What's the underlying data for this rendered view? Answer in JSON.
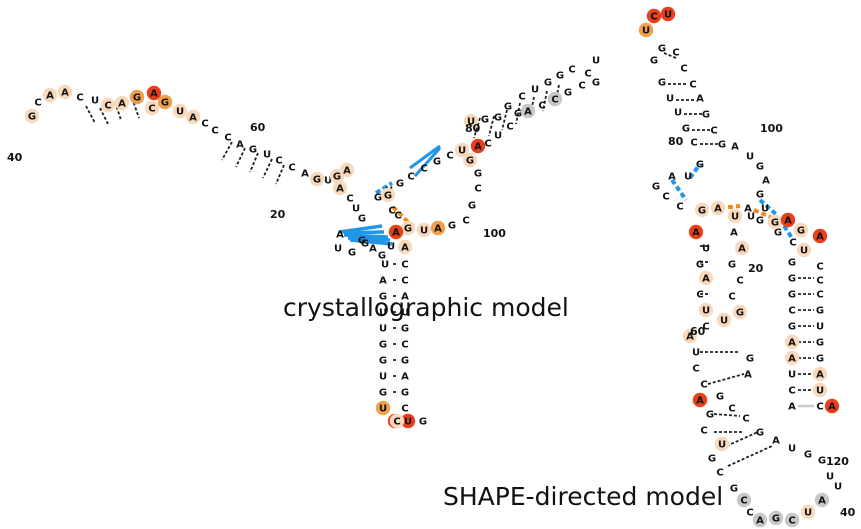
{
  "captions": {
    "left": "crystallographic model",
    "right": "SHAPE-directed model"
  },
  "colors": {
    "high_reactivity": "#e8401c",
    "medium_reactivity": "#f0a04a",
    "low_reactivity": "#f8d9bc",
    "no_data": "#c8c8c8",
    "tertiary_blue": "#2196e8",
    "tertiary_orange": "#f08c1a",
    "pair_line": "#222222"
  },
  "left_model": {
    "numbers": [
      "20",
      "40",
      "60",
      "80",
      "100"
    ],
    "bases": [
      {
        "t": "C",
        "c": "none"
      },
      {
        "t": "G",
        "c": "low"
      },
      {
        "t": "A",
        "c": "low"
      },
      {
        "t": "A",
        "c": "low"
      },
      {
        "t": "C",
        "c": "none"
      },
      {
        "t": "U",
        "c": "none"
      },
      {
        "t": "C",
        "c": "low"
      },
      {
        "t": "A",
        "c": "low"
      },
      {
        "t": "G",
        "c": "med"
      },
      {
        "t": "A",
        "c": "high"
      },
      {
        "t": "C",
        "c": "low"
      },
      {
        "t": "G",
        "c": "med"
      },
      {
        "t": "U",
        "c": "low"
      },
      {
        "t": "A",
        "c": "low"
      },
      {
        "t": "C",
        "c": "none"
      },
      {
        "t": "C",
        "c": "none"
      },
      {
        "t": "C",
        "c": "none"
      },
      {
        "t": "A",
        "c": "none"
      },
      {
        "t": "G",
        "c": "none"
      },
      {
        "t": "U",
        "c": "none"
      },
      {
        "t": "C",
        "c": "none"
      },
      {
        "t": "C",
        "c": "none"
      },
      {
        "t": "A",
        "c": "none"
      },
      {
        "t": "G",
        "c": "low"
      },
      {
        "t": "U",
        "c": "none"
      },
      {
        "t": "G",
        "c": "low"
      },
      {
        "t": "A",
        "c": "low"
      },
      {
        "t": "A",
        "c": "low"
      },
      {
        "t": "C",
        "c": "none"
      },
      {
        "t": "U",
        "c": "none"
      },
      {
        "t": "G",
        "c": "none"
      },
      {
        "t": "G",
        "c": "none"
      },
      {
        "t": "U",
        "c": "none"
      },
      {
        "t": "G",
        "c": "none"
      },
      {
        "t": "C",
        "c": "none"
      },
      {
        "t": "C",
        "c": "none"
      },
      {
        "t": "G",
        "c": "none"
      },
      {
        "t": "C",
        "c": "none"
      },
      {
        "t": "U",
        "c": "low"
      },
      {
        "t": "A",
        "c": "high"
      },
      {
        "t": "G",
        "c": "low"
      },
      {
        "t": "G",
        "c": "none"
      },
      {
        "t": "C",
        "c": "none"
      },
      {
        "t": "G",
        "c": "none"
      },
      {
        "t": "C",
        "c": "none"
      },
      {
        "t": "G",
        "c": "none"
      },
      {
        "t": "A",
        "c": "med"
      },
      {
        "t": "U",
        "c": "low"
      },
      {
        "t": "G",
        "c": "low"
      },
      {
        "t": "C",
        "c": "none"
      },
      {
        "t": "C",
        "c": "none"
      },
      {
        "t": "G",
        "c": "low"
      },
      {
        "t": "A",
        "c": "high"
      },
      {
        "t": "A",
        "c": "low"
      },
      {
        "t": "U",
        "c": "none"
      },
      {
        "t": "G",
        "c": "none"
      },
      {
        "t": "A",
        "c": "none"
      },
      {
        "t": "G",
        "c": "none"
      },
      {
        "t": "A",
        "c": "none"
      },
      {
        "t": "U",
        "c": "none"
      },
      {
        "t": "G",
        "c": "none"
      },
      {
        "t": "G",
        "c": "none"
      },
      {
        "t": "U",
        "c": "none"
      },
      {
        "t": "A",
        "c": "none"
      },
      {
        "t": "G",
        "c": "none"
      },
      {
        "t": "U",
        "c": "none"
      },
      {
        "t": "U",
        "c": "none"
      },
      {
        "t": "G",
        "c": "none"
      },
      {
        "t": "G",
        "c": "none"
      },
      {
        "t": "U",
        "c": "none"
      },
      {
        "t": "G",
        "c": "none"
      },
      {
        "t": "U",
        "c": "med"
      },
      {
        "t": "C",
        "c": "high"
      },
      {
        "t": "U",
        "c": "high"
      },
      {
        "t": "C",
        "c": "low"
      },
      {
        "t": "C",
        "c": "none"
      },
      {
        "t": "C",
        "c": "none"
      },
      {
        "t": "A",
        "c": "none"
      },
      {
        "t": "U",
        "c": "none"
      },
      {
        "t": "G",
        "c": "none"
      },
      {
        "t": "C",
        "c": "none"
      },
      {
        "t": "G",
        "c": "none"
      },
      {
        "t": "A",
        "c": "none"
      },
      {
        "t": "G",
        "c": "none"
      },
      {
        "t": "C",
        "c": "none"
      },
      {
        "t": "G",
        "c": "none"
      },
      {
        "t": "G",
        "c": "none"
      },
      {
        "t": "C",
        "c": "none"
      },
      {
        "t": "U",
        "c": "none"
      },
      {
        "t": "C",
        "c": "none"
      },
      {
        "t": "G",
        "c": "none"
      },
      {
        "t": "G",
        "c": "none"
      },
      {
        "t": "U",
        "c": "low"
      },
      {
        "t": "G",
        "c": "none"
      },
      {
        "t": "C",
        "c": "none"
      },
      {
        "t": "U",
        "c": "none"
      },
      {
        "t": "G",
        "c": "none"
      },
      {
        "t": "G",
        "c": "none"
      },
      {
        "t": "C",
        "c": "none"
      },
      {
        "t": "C",
        "c": "none"
      },
      {
        "t": "U",
        "c": "none"
      },
      {
        "t": "G",
        "c": "none"
      },
      {
        "t": "C",
        "c": "none"
      },
      {
        "t": "G",
        "c": "none"
      },
      {
        "t": "C",
        "c": "gray"
      },
      {
        "t": "C",
        "c": "none"
      },
      {
        "t": "A",
        "c": "gray"
      },
      {
        "t": "G",
        "c": "gray"
      },
      {
        "t": "C",
        "c": "gray"
      },
      {
        "t": "U",
        "c": "low"
      },
      {
        "t": "A",
        "c": "gray"
      },
      {
        "t": "U",
        "c": "none"
      }
    ]
  },
  "right_model": {
    "numbers": [
      "20",
      "40",
      "60",
      "80",
      "100",
      "120"
    ],
    "bases": [
      {
        "t": "C",
        "c": "high"
      },
      {
        "t": "U",
        "c": "high"
      },
      {
        "t": "U",
        "c": "med"
      },
      {
        "t": "G",
        "c": "none"
      },
      {
        "t": "C",
        "c": "none"
      },
      {
        "t": "G",
        "c": "none"
      },
      {
        "t": "C",
        "c": "none"
      },
      {
        "t": "G",
        "c": "none"
      },
      {
        "t": "C",
        "c": "none"
      },
      {
        "t": "U",
        "c": "none"
      },
      {
        "t": "A",
        "c": "none"
      },
      {
        "t": "U",
        "c": "none"
      },
      {
        "t": "G",
        "c": "none"
      },
      {
        "t": "G",
        "c": "none"
      },
      {
        "t": "C",
        "c": "none"
      },
      {
        "t": "C",
        "c": "none"
      },
      {
        "t": "G",
        "c": "none"
      },
      {
        "t": "A",
        "c": "none"
      },
      {
        "t": "U",
        "c": "none"
      },
      {
        "t": "G",
        "c": "none"
      },
      {
        "t": "A",
        "c": "none"
      },
      {
        "t": "G",
        "c": "none"
      },
      {
        "t": "U",
        "c": "none"
      },
      {
        "t": "U",
        "c": "none"
      },
      {
        "t": "G",
        "c": "none"
      },
      {
        "t": "G",
        "c": "none"
      },
      {
        "t": "U",
        "c": "none"
      },
      {
        "t": "A",
        "c": "none"
      },
      {
        "t": "G",
        "c": "none"
      },
      {
        "t": "C",
        "c": "none"
      },
      {
        "t": "C",
        "c": "none"
      },
      {
        "t": "G",
        "c": "low"
      },
      {
        "t": "A",
        "c": "low"
      },
      {
        "t": "U",
        "c": "low"
      },
      {
        "t": "A",
        "c": "none"
      },
      {
        "t": "G",
        "c": "none"
      },
      {
        "t": "G",
        "c": "low"
      },
      {
        "t": "A",
        "c": "high"
      },
      {
        "t": "G",
        "c": "low"
      },
      {
        "t": "C",
        "c": "none"
      },
      {
        "t": "A",
        "c": "high"
      },
      {
        "t": "U",
        "c": "low"
      },
      {
        "t": "G",
        "c": "none"
      },
      {
        "t": "C",
        "c": "none"
      },
      {
        "t": "G",
        "c": "none"
      },
      {
        "t": "C",
        "c": "none"
      },
      {
        "t": "G",
        "c": "none"
      },
      {
        "t": "C",
        "c": "none"
      },
      {
        "t": "C",
        "c": "none"
      },
      {
        "t": "G",
        "c": "none"
      },
      {
        "t": "G",
        "c": "none"
      },
      {
        "t": "U",
        "c": "none"
      },
      {
        "t": "A",
        "c": "low"
      },
      {
        "t": "G",
        "c": "none"
      },
      {
        "t": "A",
        "c": "low"
      },
      {
        "t": "G",
        "c": "none"
      },
      {
        "t": "U",
        "c": "none"
      },
      {
        "t": "A",
        "c": "low"
      },
      {
        "t": "C",
        "c": "none"
      },
      {
        "t": "U",
        "c": "low"
      },
      {
        "t": "A",
        "c": "none"
      },
      {
        "t": "C",
        "c": "none"
      },
      {
        "t": "A",
        "c": "high"
      },
      {
        "t": "A",
        "c": "high"
      },
      {
        "t": "U",
        "c": "none"
      },
      {
        "t": "G",
        "c": "none"
      },
      {
        "t": "A",
        "c": "low"
      },
      {
        "t": "C",
        "c": "none"
      },
      {
        "t": "U",
        "c": "low"
      },
      {
        "t": "C",
        "c": "none"
      },
      {
        "t": "A",
        "c": "none"
      },
      {
        "t": "A",
        "c": "low"
      },
      {
        "t": "G",
        "c": "none"
      },
      {
        "t": "C",
        "c": "none"
      },
      {
        "t": "C",
        "c": "none"
      },
      {
        "t": "G",
        "c": "low"
      },
      {
        "t": "U",
        "c": "low"
      },
      {
        "t": "A",
        "c": "low"
      },
      {
        "t": "U",
        "c": "none"
      },
      {
        "t": "C",
        "c": "none"
      },
      {
        "t": "C",
        "c": "none"
      },
      {
        "t": "A",
        "c": "high"
      },
      {
        "t": "G",
        "c": "none"
      },
      {
        "t": "C",
        "c": "none"
      },
      {
        "t": "U",
        "c": "low"
      },
      {
        "t": "G",
        "c": "none"
      },
      {
        "t": "C",
        "c": "none"
      },
      {
        "t": "G",
        "c": "none"
      },
      {
        "t": "C",
        "c": "gray"
      },
      {
        "t": "C",
        "c": "none"
      },
      {
        "t": "A",
        "c": "gray"
      },
      {
        "t": "G",
        "c": "gray"
      },
      {
        "t": "C",
        "c": "gray"
      },
      {
        "t": "U",
        "c": "low"
      },
      {
        "t": "A",
        "c": "gray"
      },
      {
        "t": "U",
        "c": "none"
      },
      {
        "t": "U",
        "c": "none"
      },
      {
        "t": "G",
        "c": "none"
      },
      {
        "t": "G",
        "c": "none"
      },
      {
        "t": "U",
        "c": "none"
      },
      {
        "t": "A",
        "c": "none"
      },
      {
        "t": "G",
        "c": "none"
      },
      {
        "t": "C",
        "c": "none"
      },
      {
        "t": "C",
        "c": "none"
      },
      {
        "t": "G",
        "c": "none"
      },
      {
        "t": "A",
        "c": "none"
      },
      {
        "t": "G",
        "c": "none"
      }
    ]
  }
}
